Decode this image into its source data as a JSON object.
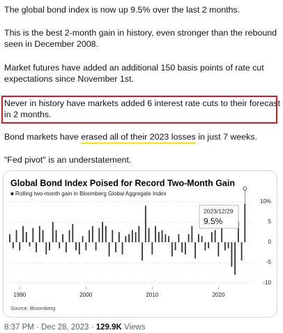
{
  "tweet": {
    "paragraphs": [
      [
        "The global bond index is now up 9.5% over the last 2 months."
      ],
      [
        "This is the best 2-month gain in history, even stronger than the rebound",
        "seen in December 2008."
      ],
      [
        "Market futures have added an additional 150 basis points of rate cut",
        "expectations since November 1st."
      ]
    ],
    "highlighted": [
      "Never in history have markets added 6 interest rate cuts to their forecast",
      "in 2 months."
    ],
    "underlined_paragraph": [
      "Bond markets have ",
      "erased all of their 2023 losses",
      " in just 7 weeks."
    ],
    "closing": "\"Fed pivot\" is an understatement.",
    "footer": {
      "time": "8:37 PM · Dec 28, 2023 · ",
      "views": "129.9K",
      "views_label": " Views"
    }
  },
  "chart_data": {
    "type": "bar",
    "title": "Global Bond Index Poised for Record Two-Month Gain",
    "subtitle": "■ Rolling two-month gain in Bloomberg Global Aggregate Index",
    "source": "Source: Bloomberg",
    "annotation": {
      "date": "2023/12/29",
      "label": "9.5%"
    },
    "color": "#333333",
    "x": [
      1988.5,
      1989,
      1989.5,
      1990,
      1990.5,
      1991,
      1991.5,
      1992,
      1992.5,
      1993,
      1993.5,
      1994,
      1994.5,
      1995,
      1995.5,
      1996,
      1996.5,
      1997,
      1997.5,
      1998,
      1998.5,
      1999,
      1999.5,
      2000,
      2000.5,
      2001,
      2001.5,
      2002,
      2002.5,
      2003,
      2003.5,
      2004,
      2004.5,
      2005,
      2005.5,
      2006,
      2006.5,
      2007,
      2007.5,
      2008,
      2008.5,
      2009,
      2009.5,
      2010,
      2010.5,
      2011,
      2011.5,
      2012,
      2012.5,
      2013,
      2013.5,
      2014,
      2014.5,
      2015,
      2015.5,
      2016,
      2016.5,
      2017,
      2017.5,
      2018,
      2018.5,
      2019,
      2019.5,
      2020,
      2020.5,
      2021,
      2021.5,
      2022,
      2022.5,
      2023,
      2023.5,
      2023.99
    ],
    "values": [
      2,
      -1.5,
      3,
      -2,
      4,
      2.5,
      -1,
      3.5,
      -2.5,
      4,
      3,
      -3,
      -2,
      5,
      3,
      -1.5,
      2,
      -2.5,
      3,
      4.5,
      -2,
      -3,
      1.5,
      -2,
      3,
      4,
      -2,
      3.5,
      5,
      4,
      -3.5,
      3,
      -2.5,
      2.5,
      -3,
      1.5,
      2,
      3,
      2.5,
      4,
      -4.5,
      9,
      3.5,
      -3,
      4,
      2.5,
      3,
      2,
      1.5,
      -3.5,
      -2,
      2,
      -2.5,
      -3,
      2,
      4,
      -4,
      2,
      1.5,
      -2,
      -1.5,
      2.5,
      3,
      -3.5,
      4,
      -2,
      -1.5,
      -6,
      -8,
      5,
      -4.5,
      9.5
    ],
    "xlim": [
      1988.6,
      2024.8
    ],
    "xticks": [
      1990,
      2000,
      2010,
      2020
    ],
    "ylim": [
      -11,
      11
    ],
    "yticks": [
      {
        "value": 10,
        "label": "10%"
      },
      5,
      0,
      -5,
      -10
    ],
    "grid": true
  }
}
